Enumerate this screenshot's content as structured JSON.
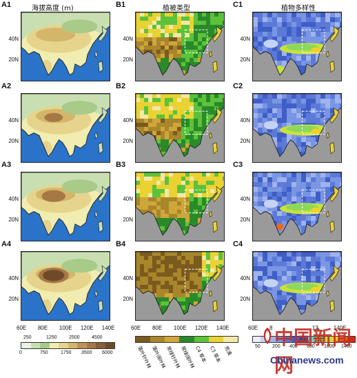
{
  "columns": {
    "a_title": "海拔高度 (m)",
    "b_title": "植被类型",
    "c_title": "植物多样性"
  },
  "panels": {
    "a": [
      "A1",
      "A2",
      "A3",
      "A4"
    ],
    "b": [
      "B1",
      "B2",
      "B3",
      "B4"
    ],
    "c": [
      "C1",
      "C2",
      "C3",
      "C4"
    ]
  },
  "lat_labels": [
    "40N",
    "20N"
  ],
  "lon_labels": {
    "a": [
      "60E",
      "80E",
      "100E",
      "120E",
      "140E"
    ],
    "b": [
      "60E",
      "80E",
      "100E",
      "120E",
      "140E"
    ],
    "c": [
      "60E",
      "8",
      "",
      "12",
      "140E"
    ]
  },
  "elevation_colorbar": {
    "top_ticks": [
      "250",
      "1250",
      "2500",
      "4500"
    ],
    "bottom_ticks": [
      "0",
      "750",
      "1750",
      "3500",
      "6000"
    ],
    "colors": [
      "#eaf1df",
      "#c9dfb2",
      "#a8cb8a",
      "#f1ecb0",
      "#e6d48c",
      "#d4b66b",
      "#bf9153",
      "#a67845",
      "#8b5f36",
      "#6f4a2a"
    ]
  },
  "vegetation_legend": {
    "classes": [
      "落叶针叶林",
      "落叶阔叶林",
      "常绿针叶林",
      "常绿阔叶林",
      "C4 草本",
      "C3 草本",
      "荒漠"
    ],
    "colors": [
      "#7b5a1e",
      "#a8862b",
      "#cfa63a",
      "#2a8a2a",
      "#5cc23a",
      "#ead233",
      "#f3e8a6"
    ]
  },
  "diversity_colorbar": {
    "ticks": [
      "50",
      "200",
      "400",
      "800",
      "1000",
      "1400"
    ],
    "colors": [
      "#e8eefb",
      "#c5d3f4",
      "#9fb3ec",
      "#7a95e3",
      "#5b7ad8",
      "#3f5ec6",
      "#2845a8",
      "#6fd0d0",
      "#8cd85a",
      "#c9e23a",
      "#f3d02a",
      "#e86a1e",
      "#d42a1a"
    ]
  },
  "watermark": {
    "brand": "中国新闻网",
    "site": "Chinanews.com"
  }
}
